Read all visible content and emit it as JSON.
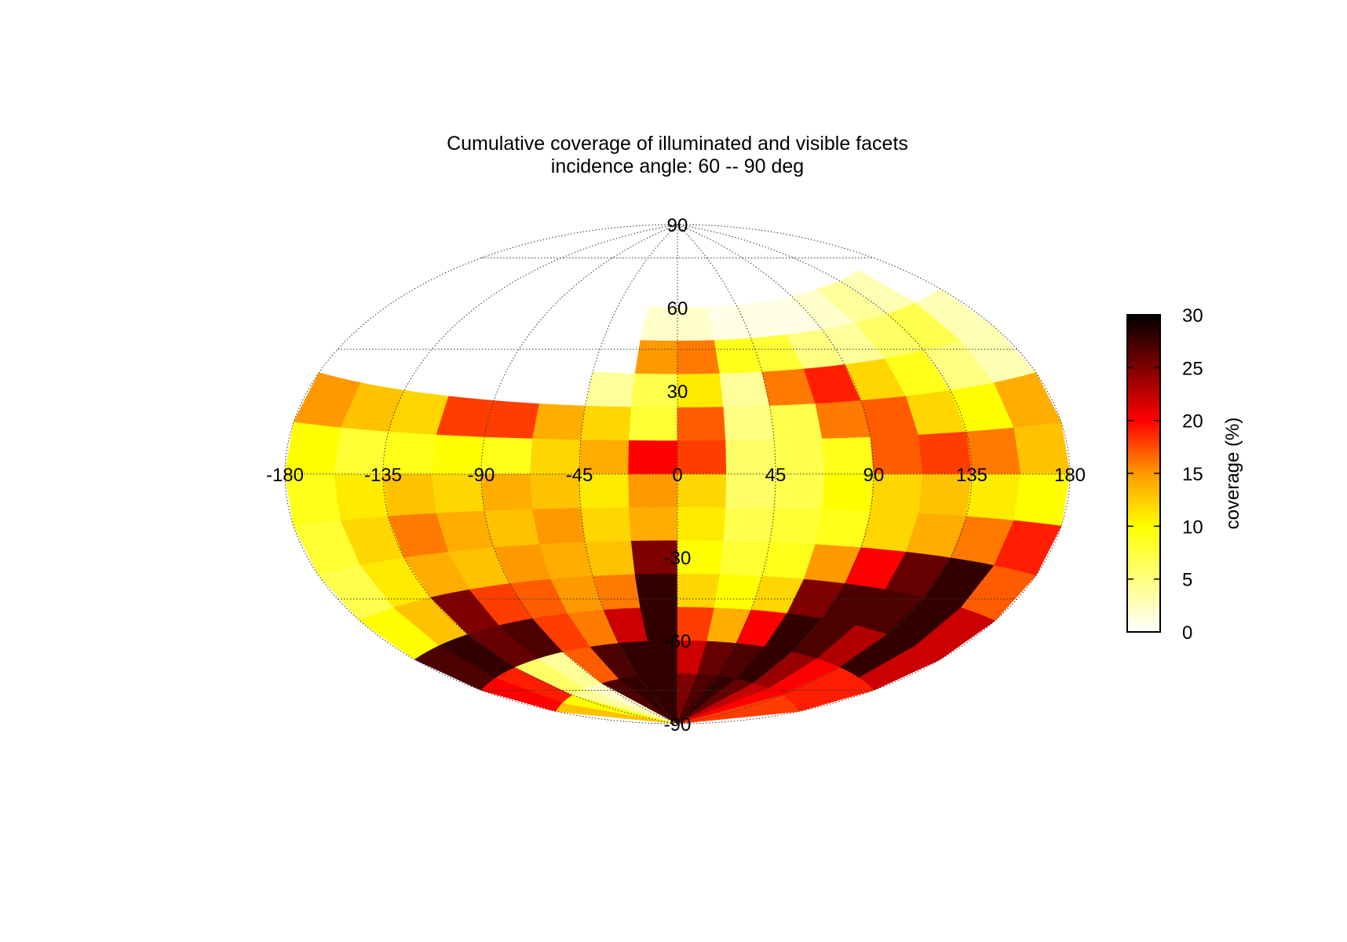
{
  "chart_data": {
    "type": "heatmap",
    "projection": "aitoff",
    "title": "Cumulative coverage of illuminated and visible facets",
    "subtitle": "incidence angle: 60 -- 90 deg",
    "x_ticks": [
      "-180",
      "-135",
      "-90",
      "-45",
      "0",
      "45",
      "90",
      "135",
      "180"
    ],
    "y_ticks": [
      "90",
      "60",
      "30",
      "-30",
      "-60",
      "-90"
    ],
    "colorbar": {
      "label": "coverage (%)",
      "range": [
        0,
        30
      ],
      "ticks": [
        "0",
        "5",
        "10",
        "15",
        "20",
        "25",
        "30"
      ],
      "colormap": [
        "#ffffff",
        "#ffff00",
        "#ff9900",
        "#ff0000",
        "#000000"
      ]
    },
    "grid": true,
    "lon_range": [
      -180,
      180
    ],
    "lat_range": [
      -90,
      90
    ],
    "lon_edges": [
      -180,
      -157.5,
      -135,
      -112.5,
      -90,
      -67.5,
      -45,
      -22.5,
      0,
      22.5,
      45,
      67.5,
      90,
      112.5,
      135,
      157.5,
      180
    ],
    "lat_bands": [
      {
        "lat_range": [
          48,
          60
        ],
        "values": [
          null,
          null,
          null,
          null,
          null,
          null,
          null,
          2,
          2,
          1,
          1,
          1,
          2,
          4,
          3,
          null
        ]
      },
      {
        "lat_range": [
          36,
          48
        ],
        "values": [
          null,
          null,
          null,
          null,
          null,
          null,
          null,
          15,
          16,
          9,
          8,
          5,
          4,
          6,
          7,
          3
        ]
      },
      {
        "lat_range": [
          24,
          36
        ],
        "values": [
          null,
          null,
          null,
          null,
          null,
          null,
          4,
          7,
          11,
          4,
          16,
          19,
          12,
          9,
          5,
          3
        ]
      },
      {
        "lat_range": [
          12,
          24
        ],
        "values": [
          15,
          13,
          12,
          18,
          18,
          14,
          12,
          8,
          17,
          5,
          7,
          16,
          17,
          12,
          10,
          14
        ]
      },
      {
        "lat_range": [
          0,
          12
        ],
        "values": [
          10,
          8,
          9,
          10,
          9,
          12,
          14,
          20,
          18,
          6,
          7,
          9,
          17,
          18,
          16,
          13
        ]
      },
      {
        "lat_range": [
          -12,
          0
        ],
        "values": [
          9,
          11,
          13,
          12,
          14,
          13,
          11,
          15,
          12,
          6,
          7,
          10,
          12,
          13,
          11,
          10
        ]
      },
      {
        "lat_range": [
          -24,
          -12
        ],
        "values": [
          8,
          12,
          16,
          14,
          13,
          15,
          12,
          14,
          11,
          7,
          8,
          9,
          12,
          14,
          16,
          19
        ]
      },
      {
        "lat_range": [
          -36,
          -24
        ],
        "values": [
          7,
          11,
          14,
          13,
          15,
          14,
          13,
          25,
          10,
          8,
          9,
          15,
          20,
          26,
          28,
          17
        ]
      },
      {
        "lat_range": [
          -48,
          -36
        ],
        "values": [
          10,
          13,
          25,
          18,
          17,
          15,
          16,
          28,
          12,
          10,
          12,
          25,
          27,
          27,
          28,
          22
        ]
      },
      {
        "lat_range": [
          -60,
          -48
        ],
        "values": [
          27,
          28,
          26,
          27,
          18,
          16,
          22,
          28,
          18,
          14,
          20,
          28,
          27,
          23,
          28,
          22
        ]
      },
      {
        "lat_range": [
          -72,
          -60
        ],
        "values": [
          20,
          19,
          6,
          4,
          17,
          27,
          28,
          28,
          22,
          26,
          27,
          28,
          24,
          20,
          19,
          19
        ]
      },
      {
        "lat_range": [
          -90,
          -72
        ],
        "values": [
          13,
          10,
          4,
          2,
          27,
          28,
          28,
          28,
          25,
          27,
          28,
          26,
          22,
          20,
          18,
          18
        ]
      }
    ]
  }
}
